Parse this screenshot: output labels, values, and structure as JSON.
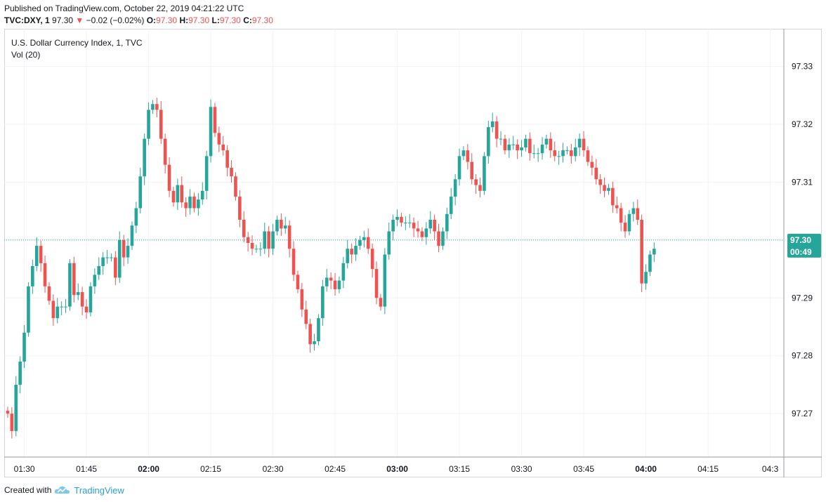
{
  "header": {
    "published": "Published on TradingView.com, October 22, 2019 04:21:22 UTC",
    "symbol": "TVC:DXY, 1",
    "last": "97.30",
    "change_arrow": "▼",
    "change": "−0.02 (−0.02%)",
    "o_label": "O:",
    "o": "97.30",
    "h_label": "H:",
    "h": "97.30",
    "l_label": "L:",
    "l": "97.30",
    "c_label": "C:",
    "c": "97.30"
  },
  "legend": {
    "title": "U.S. Dollar Currency Index, 1, TVC",
    "volume": "Vol (20)"
  },
  "price_tag": {
    "price": "97.30",
    "countdown": "00:49"
  },
  "footer": {
    "created_with": "Created with",
    "brand": "TradingView",
    "logo_icon": "tradingview-cloud-icon"
  },
  "colors": {
    "up": "#26a69a",
    "down": "#ef5350",
    "grid": "#f0f3fa",
    "text": "#131722",
    "price_line": "#26a69a"
  },
  "chart_data": {
    "type": "candlestick",
    "title": "U.S. Dollar Currency Index, 1, TVC",
    "ylim": [
      97.2625,
      97.3365
    ],
    "y_ticks": [
      "97.33",
      "97.32",
      "97.31",
      "97.30",
      "97.29",
      "97.28",
      "97.27"
    ],
    "x_ticks": [
      {
        "label": "01:30",
        "bold": false
      },
      {
        "label": "01:45",
        "bold": false
      },
      {
        "label": "02:00",
        "bold": true
      },
      {
        "label": "02:15",
        "bold": false
      },
      {
        "label": "02:30",
        "bold": false
      },
      {
        "label": "02:45",
        "bold": false
      },
      {
        "label": "03:00",
        "bold": true
      },
      {
        "label": "03:15",
        "bold": false
      },
      {
        "label": "03:30",
        "bold": false
      },
      {
        "label": "03:45",
        "bold": false
      },
      {
        "label": "04:00",
        "bold": true
      },
      {
        "label": "04:15",
        "bold": false
      },
      {
        "label": "04:3",
        "bold": false
      }
    ],
    "x_start": "01:26",
    "grid": true,
    "last_price": 97.3,
    "closes": [
      97.27,
      97.267,
      97.275,
      97.279,
      97.284,
      97.292,
      97.2955,
      97.299,
      97.296,
      97.292,
      97.2895,
      97.2865,
      97.2885,
      97.2885,
      97.2885,
      97.296,
      97.2905,
      97.291,
      97.2885,
      97.2875,
      97.292,
      97.294,
      97.2955,
      97.297,
      97.297,
      97.297,
      97.2935,
      97.3,
      97.297,
      97.299,
      97.3025,
      97.3055,
      97.311,
      97.3175,
      97.3225,
      97.3235,
      97.3225,
      97.3175,
      97.313,
      97.3085,
      97.3065,
      97.3095,
      97.3065,
      97.3055,
      97.3075,
      97.3055,
      97.307,
      97.3085,
      97.3145,
      97.323,
      97.3185,
      97.3165,
      97.3155,
      97.3125,
      97.311,
      97.3075,
      97.3035,
      97.3005,
      97.2995,
      97.2985,
      97.2985,
      97.2985,
      97.3015,
      97.2985,
      97.3015,
      97.3035,
      97.302,
      97.3025,
      97.2985,
      97.294,
      97.2915,
      97.288,
      97.2855,
      97.282,
      97.2825,
      97.2865,
      97.292,
      97.2935,
      97.293,
      97.2915,
      97.293,
      97.296,
      97.2985,
      97.2975,
      97.299,
      97.3,
      97.3005,
      97.2985,
      97.295,
      97.29,
      97.2885,
      97.2975,
      97.3015,
      97.3035,
      97.304,
      97.303,
      97.303,
      97.303,
      97.302,
      97.3015,
      97.3005,
      97.302,
      97.3035,
      97.3015,
      97.299,
      97.3015,
      97.3045,
      97.3075,
      97.3105,
      97.3145,
      97.3155,
      97.3135,
      97.3105,
      97.3095,
      97.3085,
      97.3145,
      97.3195,
      97.3205,
      97.3175,
      97.3175,
      97.3155,
      97.3165,
      97.3165,
      97.3155,
      97.316,
      97.3175,
      97.315,
      97.315,
      97.315,
      97.3165,
      97.3175,
      97.3155,
      97.3145,
      97.3145,
      97.3155,
      97.3155,
      97.3145,
      97.316,
      97.3175,
      97.3155,
      97.3135,
      97.3125,
      97.3105,
      97.3095,
      97.3085,
      97.309,
      97.306,
      97.3055,
      97.303,
      97.3015,
      97.3045,
      97.3055,
      97.3035,
      97.2925,
      97.2945,
      97.2975,
      97.2985
    ]
  }
}
